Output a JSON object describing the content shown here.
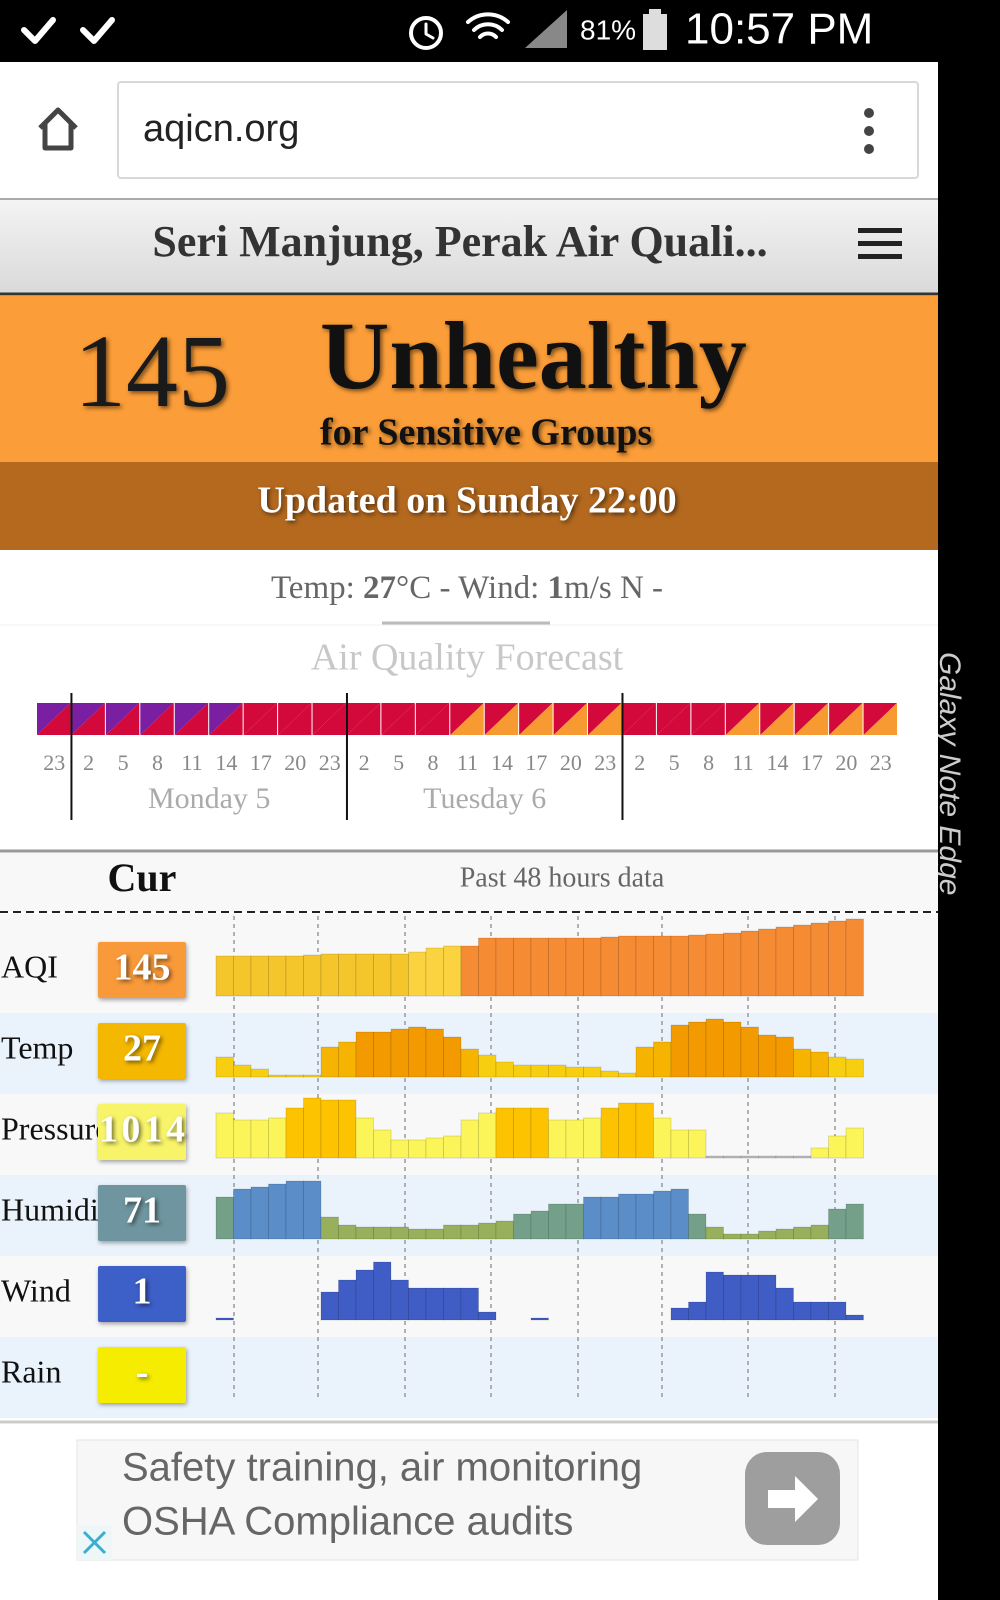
{
  "status_bar": {
    "battery": "81%",
    "time": "10:57 PM"
  },
  "browser": {
    "url": "aqicn.org"
  },
  "side_label": "Galaxy Note Edge",
  "header": {
    "title": "Seri Manjung, Perak Air Quali..."
  },
  "aqi_banner": {
    "value": "145",
    "level": "Unhealthy",
    "sublevel": "for Sensitive Groups",
    "updated": "Updated on Sunday 22:00"
  },
  "weather": {
    "temp_label": "Temp: ",
    "temp": "27",
    "temp_unit": "°C - Wind: ",
    "wind": "1",
    "wind_unit": "m/s N -"
  },
  "forecast": {
    "title": "Air Quality Forecast",
    "hours": [
      "23",
      "2",
      "5",
      "8",
      "11",
      "14",
      "17",
      "20",
      "23",
      "2",
      "5",
      "8",
      "11",
      "14",
      "17",
      "20",
      "23",
      "2",
      "5",
      "8",
      "11",
      "14",
      "17",
      "20",
      "23"
    ],
    "days": [
      "Monday 5",
      "Tuesday 6"
    ],
    "cells": [
      [
        "#7b1fa2",
        "#d4093b"
      ],
      [
        "#7b1fa2",
        "#d4093b"
      ],
      [
        "#7b1fa2",
        "#d4093b"
      ],
      [
        "#7b1fa2",
        "#d4093b"
      ],
      [
        "#7b1fa2",
        "#d4093b"
      ],
      [
        "#7b1fa2",
        "#d4093b"
      ],
      [
        "#d4093b",
        "#d4093b"
      ],
      [
        "#d4093b",
        "#d4093b"
      ],
      [
        "#d4093b",
        "#d4093b"
      ],
      [
        "#d4093b",
        "#d4093b"
      ],
      [
        "#d4093b",
        "#d4093b"
      ],
      [
        "#d4093b",
        "#d4093b"
      ],
      [
        "#d4093b",
        "#f79a32"
      ],
      [
        "#d4093b",
        "#f79a32"
      ],
      [
        "#d4093b",
        "#f79a32"
      ],
      [
        "#d4093b",
        "#f79a32"
      ],
      [
        "#d4093b",
        "#f79a32"
      ],
      [
        "#d4093b",
        "#d4093b"
      ],
      [
        "#d4093b",
        "#d4093b"
      ],
      [
        "#d4093b",
        "#d4093b"
      ],
      [
        "#d4093b",
        "#f79a32"
      ],
      [
        "#d4093b",
        "#f79a32"
      ],
      [
        "#d4093b",
        "#f79a32"
      ],
      [
        "#d4093b",
        "#f79a32"
      ],
      [
        "#d4093b",
        "#f79a32"
      ]
    ]
  },
  "past_data": {
    "current_header": "Cur",
    "title": "Past 48 hours data",
    "ylim": [
      0,
      80
    ],
    "rows": [
      {
        "label": "AQI",
        "current": "145",
        "box_color": "#f99a3a",
        "values": [
          40,
          40,
          40,
          40,
          40,
          41,
          42,
          42,
          42,
          42,
          42,
          44,
          48,
          50,
          50,
          58,
          58,
          58,
          58,
          58,
          58,
          58,
          59,
          60,
          60,
          60,
          60,
          61,
          62,
          63,
          65,
          67,
          69,
          71,
          73,
          75,
          77
        ],
        "colors": [
          "#f5c52c",
          "#f5c52c",
          "#f5c52c",
          "#f5c52c",
          "#f5c52c",
          "#f5c52c",
          "#f5c52c",
          "#f5c52c",
          "#f5c52c",
          "#f5c52c",
          "#f5c52c",
          "#fbd341",
          "#fbd341",
          "#fbd341",
          "#f58b33",
          "#f58b33",
          "#f58b33",
          "#f58b33",
          "#f58b33",
          "#f58b33",
          "#f58b33",
          "#f58b33",
          "#f58b33",
          "#f58b33",
          "#f58b33",
          "#f58b33",
          "#f58b33",
          "#f58b33",
          "#f58b33",
          "#f58b33",
          "#f58b33",
          "#f58b33",
          "#f58b33",
          "#f58b33",
          "#f58b33",
          "#f58b33",
          "#f58b33"
        ]
      },
      {
        "label": "Temp",
        "current": "27",
        "box_color": "#f5b800",
        "values": [
          20,
          12,
          8,
          2,
          2,
          2,
          30,
          35,
          45,
          45,
          48,
          50,
          48,
          40,
          28,
          22,
          15,
          12,
          12,
          12,
          10,
          10,
          6,
          4,
          30,
          35,
          52,
          55,
          58,
          55,
          50,
          42,
          40,
          28,
          25,
          20,
          18
        ],
        "colors": [
          "#f7cf10",
          "#f7cf10",
          "#f7cf10",
          "#f7cf10",
          "#f7cf10",
          "#f7cf10",
          "#f6b400",
          "#f6b400",
          "#f29a00",
          "#f29a00",
          "#f29a00",
          "#f29a00",
          "#f29a00",
          "#f29a00",
          "#f6b400",
          "#f7cf10",
          "#f7cf10",
          "#f7cf10",
          "#f7cf10",
          "#f7cf10",
          "#f7cf10",
          "#f7cf10",
          "#f7cf10",
          "#f7cf10",
          "#f6b400",
          "#f6b400",
          "#f29a00",
          "#f29a00",
          "#f29a00",
          "#f29a00",
          "#f29a00",
          "#f29a00",
          "#f29a00",
          "#f6b400",
          "#f6b400",
          "#f7cf10",
          "#f7cf10"
        ]
      },
      {
        "label": "Pressure",
        "current": "1014",
        "box_color": "#f8f46a",
        "values": [
          45,
          38,
          38,
          40,
          50,
          60,
          58,
          58,
          40,
          28,
          18,
          18,
          20,
          22,
          38,
          45,
          50,
          50,
          50,
          38,
          38,
          40,
          50,
          55,
          55,
          40,
          28,
          28,
          2,
          2,
          2,
          2,
          2,
          2,
          10,
          22,
          30
        ],
        "colors": [
          "#fbf55a",
          "#fbf55a",
          "#fbf55a",
          "#fbf55a",
          "#fdc300",
          "#fdc300",
          "#fdc300",
          "#fdc300",
          "#fbf55a",
          "#fbf55a",
          "#fbf55a",
          "#fbf55a",
          "#fbf55a",
          "#fbf55a",
          "#fbf55a",
          "#fbf55a",
          "#fdc300",
          "#fdc300",
          "#fdc300",
          "#fbf55a",
          "#fbf55a",
          "#fbf55a",
          "#fdc300",
          "#fdc300",
          "#fdc300",
          "#fbf55a",
          "#fbf55a",
          "#fbf55a",
          "#bbbbbb",
          "#bbbbbb",
          "#bbbbbb",
          "#bbbbbb",
          "#bbbbbb",
          "#bbbbbb",
          "#fbf55a",
          "#fbf55a",
          "#fbf55a"
        ]
      },
      {
        "label": "Humidity",
        "current": "71",
        "box_color": "#6f96a0",
        "values": [
          42,
          50,
          52,
          55,
          58,
          58,
          22,
          14,
          12,
          12,
          12,
          10,
          10,
          14,
          14,
          16,
          18,
          25,
          28,
          35,
          35,
          42,
          42,
          45,
          45,
          48,
          50,
          25,
          12,
          5,
          5,
          8,
          10,
          12,
          14,
          30,
          35
        ],
        "colors": [
          "#74a08a",
          "#5b8dc8",
          "#5b8dc8",
          "#5b8dc8",
          "#5b8dc8",
          "#5b8dc8",
          "#98b05c",
          "#98b05c",
          "#98b05c",
          "#98b05c",
          "#98b05c",
          "#98b05c",
          "#98b05c",
          "#98b05c",
          "#98b05c",
          "#98b05c",
          "#98b05c",
          "#74a08a",
          "#74a08a",
          "#74a08a",
          "#74a08a",
          "#5b8dc8",
          "#5b8dc8",
          "#5b8dc8",
          "#5b8dc8",
          "#5b8dc8",
          "#5b8dc8",
          "#74a08a",
          "#98b05c",
          "#98b05c",
          "#98b05c",
          "#98b05c",
          "#98b05c",
          "#98b05c",
          "#98b05c",
          "#74a08a",
          "#74a08a"
        ]
      },
      {
        "label": "Wind",
        "current": "1",
        "box_color": "#3d5fc8",
        "color": "#3f5dc4",
        "values": [
          2,
          0,
          0,
          0,
          0,
          0,
          28,
          40,
          50,
          58,
          40,
          32,
          32,
          32,
          32,
          8,
          0,
          0,
          2,
          0,
          0,
          0,
          0,
          0,
          0,
          0,
          12,
          18,
          48,
          45,
          45,
          45,
          32,
          18,
          18,
          18,
          5
        ]
      },
      {
        "label": "Rain",
        "current": "-",
        "box_color": "#f5ec00"
      }
    ]
  },
  "ad": {
    "line1": "Safety training, air monitoring",
    "line2": "OSHA Compliance audits"
  }
}
